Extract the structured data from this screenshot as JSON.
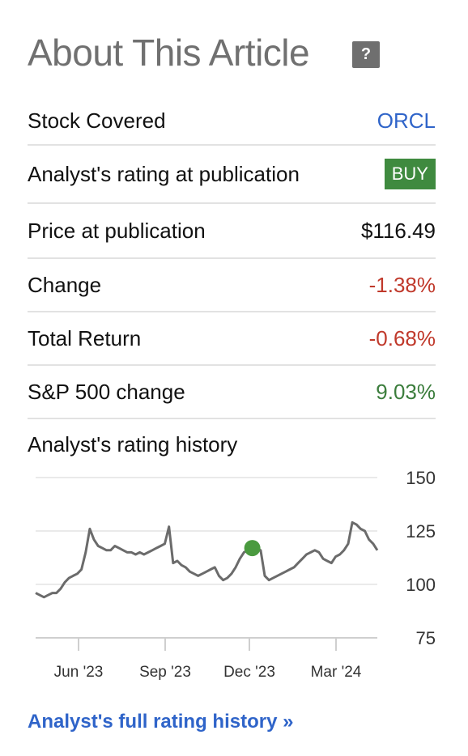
{
  "header": {
    "title": "About This Article",
    "help_label": "?"
  },
  "rows": [
    {
      "label": "Stock Covered",
      "value": "ORCL",
      "color": "#2f64c9"
    },
    {
      "label": "Analyst's rating at publication",
      "value": "BUY",
      "color": "#3f8a3f"
    },
    {
      "label": "Price at publication",
      "value": "$116.49",
      "color": "#111111"
    },
    {
      "label": "Change",
      "value": "-1.38%",
      "color": "#c0392b"
    },
    {
      "label": "Total Return",
      "value": "-0.68%",
      "color": "#c0392b"
    },
    {
      "label": "S&P 500 change",
      "value": "9.03%",
      "color": "#3b7d3c"
    }
  ],
  "history_title": "Analyst's rating history",
  "chart_data": {
    "type": "line",
    "x_ticks": [
      "Jun '23",
      "Sep '23",
      "Dec '23",
      "Mar '24"
    ],
    "y_ticks": [
      150,
      125,
      100,
      75
    ],
    "ylim": [
      75,
      150
    ],
    "grid": true,
    "series": [
      {
        "values": [
          96,
          95,
          94,
          95,
          96,
          96,
          98,
          101,
          103,
          104,
          105,
          107,
          115,
          126,
          121,
          118,
          117,
          116,
          116,
          118,
          117,
          116,
          115,
          115,
          114,
          115,
          114,
          115,
          116,
          117,
          118,
          119,
          127,
          110,
          111,
          109,
          108,
          106,
          105,
          104,
          105,
          106,
          107,
          108,
          104,
          102,
          103,
          105,
          108,
          112,
          115,
          116,
          117,
          117,
          116,
          104,
          102,
          103,
          104,
          105,
          106,
          107,
          108,
          110,
          112,
          114,
          115,
          116,
          115,
          112,
          111,
          110,
          113,
          114,
          116,
          119,
          129,
          128,
          126,
          125,
          121,
          119,
          116
        ],
        "marker_index": 52,
        "marker_value": 117
      }
    ]
  },
  "footer": {
    "link_label": "Analyst's full rating history »"
  }
}
